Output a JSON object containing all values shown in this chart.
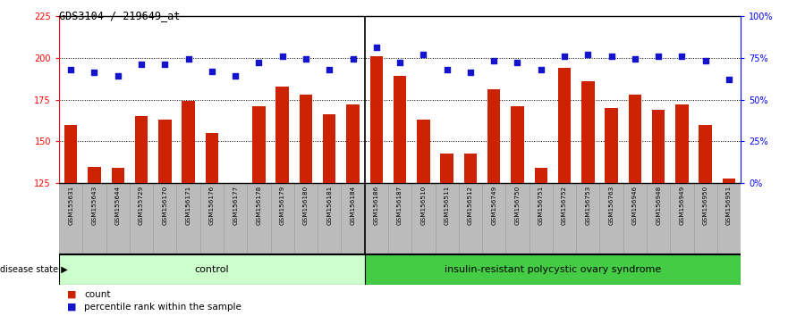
{
  "title": "GDS3104 / 219649_at",
  "samples": [
    "GSM155631",
    "GSM155643",
    "GSM155644",
    "GSM155729",
    "GSM156170",
    "GSM156171",
    "GSM156176",
    "GSM156177",
    "GSM156178",
    "GSM156179",
    "GSM156180",
    "GSM156181",
    "GSM156184",
    "GSM156186",
    "GSM156187",
    "GSM156510",
    "GSM156511",
    "GSM156512",
    "GSM156749",
    "GSM156750",
    "GSM156751",
    "GSM156752",
    "GSM156753",
    "GSM156763",
    "GSM156946",
    "GSM156948",
    "GSM156949",
    "GSM156950",
    "GSM156951"
  ],
  "counts": [
    160,
    135,
    134,
    165,
    163,
    174,
    155,
    125,
    171,
    183,
    178,
    166,
    172,
    201,
    189,
    163,
    143,
    143,
    181,
    171,
    134,
    194,
    186,
    170,
    178,
    169,
    172,
    160,
    128
  ],
  "percentiles": [
    193,
    191,
    189,
    196,
    196,
    199,
    192,
    189,
    197,
    201,
    199,
    193,
    199,
    206,
    197,
    202,
    193,
    191,
    198,
    197,
    193,
    201,
    202,
    201,
    199,
    201,
    201,
    198,
    187
  ],
  "control_count": 13,
  "disease_count": 16,
  "group_labels": [
    "control",
    "insulin-resistant polycystic ovary syndrome"
  ],
  "bar_color": "#CC2200",
  "dot_color": "#1414CC",
  "control_bg": "#CCFFCC",
  "disease_bg": "#44CC44",
  "ylim_left": [
    125,
    225
  ],
  "ylim_right": [
    0,
    100
  ],
  "yticks_left": [
    125,
    150,
    175,
    200,
    225
  ],
  "yticks_right": [
    0,
    25,
    50,
    75,
    100
  ],
  "ytick_labels_right": [
    "0%",
    "25%",
    "50%",
    "75%",
    "100%"
  ],
  "background_color": "#FFFFFF",
  "plot_bg": "#FFFFFF",
  "tick_area_bg": "#BBBBBB",
  "legend_count_label": "count",
  "legend_pct_label": "percentile rank within the sample",
  "disease_state_label": "disease state"
}
